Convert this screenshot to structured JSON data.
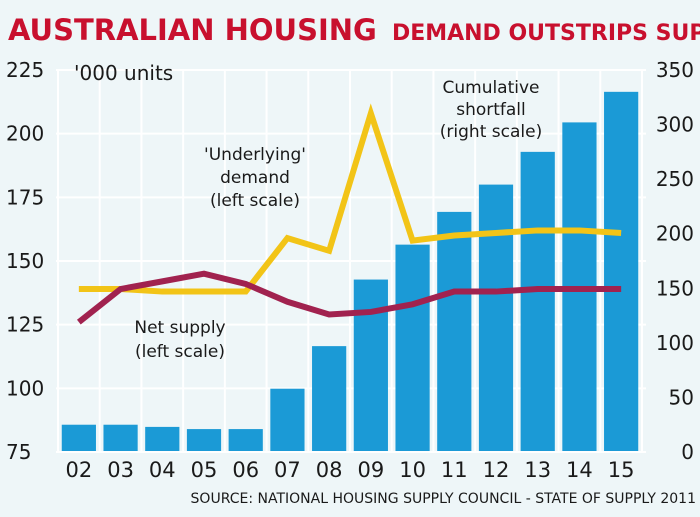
{
  "title": {
    "main": "AUSTRALIAN HOUSING",
    "sub": "DEMAND OUTSTRIPS SUPPLY"
  },
  "units_label": "'000 units",
  "source": "SOURCE: NATIONAL HOUSING SUPPLY COUNCIL - STATE OF SUPPLY 2011",
  "colors": {
    "title": "#c8102e",
    "bars": "#1b9ad6",
    "demand": "#f2c417",
    "supply": "#a1224f",
    "background": "#eef6f8"
  },
  "chart_data": {
    "type": "bar+line",
    "title": "AUSTRALIAN HOUSING DEMAND OUTSTRIPS SUPPLY",
    "categories": [
      "02",
      "03",
      "04",
      "05",
      "06",
      "07",
      "08",
      "09",
      "10",
      "11",
      "12",
      "13",
      "14",
      "15"
    ],
    "left_axis": {
      "label": "'000 units",
      "ylim": [
        75,
        225
      ],
      "ticks": [
        75,
        100,
        125,
        150,
        175,
        200,
        225
      ]
    },
    "right_axis": {
      "ylim": [
        0,
        350
      ],
      "ticks": [
        0,
        50,
        100,
        150,
        200,
        250,
        300,
        350
      ]
    },
    "grid": true,
    "series": [
      {
        "name": "Cumulative shortfall",
        "type": "bar",
        "axis": "right",
        "values": [
          25,
          25,
          23,
          21,
          21,
          58,
          97,
          158,
          190,
          220,
          245,
          275,
          302,
          330
        ]
      },
      {
        "name": "'Underlying' demand",
        "type": "line",
        "axis": "left",
        "values": [
          139,
          139,
          138,
          138,
          138,
          159,
          154,
          208,
          158,
          160,
          161,
          162,
          162,
          161
        ]
      },
      {
        "name": "Net supply",
        "type": "line",
        "axis": "left",
        "values": [
          126,
          139,
          142,
          145,
          141,
          134,
          129,
          130,
          133,
          138,
          138,
          139,
          139,
          139
        ]
      }
    ],
    "annotations": {
      "shortfall": [
        "Cumulative",
        "shortfall",
        "(right scale)"
      ],
      "demand": [
        "'Underlying'",
        "demand",
        "(left scale)"
      ],
      "supply": [
        "Net supply",
        "(left scale)"
      ]
    }
  }
}
